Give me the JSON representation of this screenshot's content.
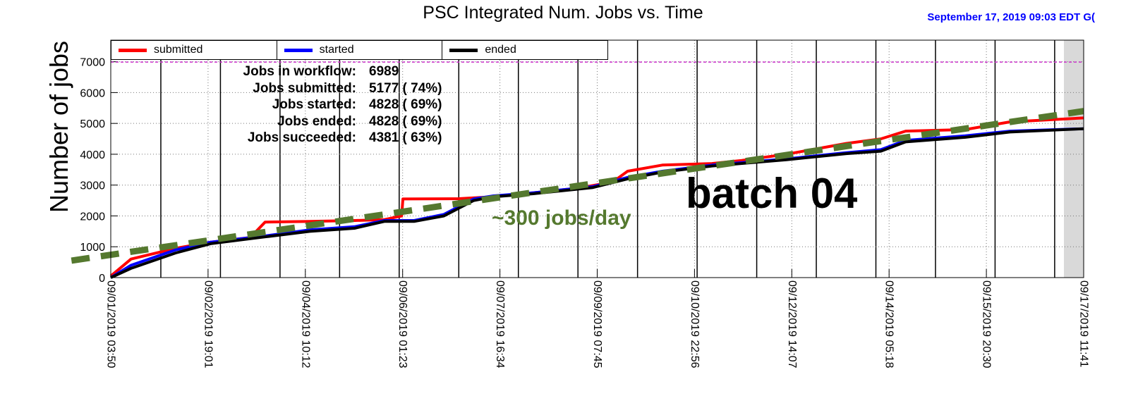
{
  "title": "PSC Integrated Num. Jobs vs. Time",
  "timestamp": "September 17, 2019  09:03 EDT G(",
  "colors": {
    "submitted": "#ff0000",
    "started": "#0000ff",
    "ended": "#000000",
    "trend": "#55792f",
    "workflow_line": "#cc33cc"
  },
  "legend": [
    {
      "label": "submitted",
      "color": "#ff0000"
    },
    {
      "label": "started",
      "color": "#0000ff"
    },
    {
      "label": "ended",
      "color": "#000000"
    }
  ],
  "stats": [
    {
      "label": "Jobs in workflow:",
      "value": "6989"
    },
    {
      "label": "Jobs submitted:",
      "value": "5177 ( 74%)"
    },
    {
      "label": "Jobs started:",
      "value": "4828 ( 69%)"
    },
    {
      "label": "Jobs ended:",
      "value": "4828 ( 69%)"
    },
    {
      "label": "Jobs succeeded:",
      "value": "4381 ( 63%)"
    }
  ],
  "annotations": {
    "batch": "batch 04",
    "rate": "~300 jobs/day"
  },
  "chart_data": {
    "type": "line",
    "ylabel": "Number of jobs",
    "xlabel": "",
    "ylim": [
      0,
      7700
    ],
    "xlim": [
      "2019-09-01 03:50",
      "2019-09-17 11:41"
    ],
    "yticks": [
      0,
      1000,
      2000,
      3000,
      4000,
      5000,
      6000,
      7000
    ],
    "xtick_labels": [
      "09/01/2019 03:50",
      "09/02/2019 19:01",
      "09/04/2019 10:12",
      "09/06/2019 01:23",
      "09/07/2019 16:34",
      "09/09/2019 07:45",
      "09/10/2019 22:56",
      "09/12/2019 14:07",
      "09/14/2019 05:18",
      "09/15/2019 20:30",
      "09/17/2019 11:41"
    ],
    "grid": true,
    "legend_position": "top-left",
    "reference_line": {
      "label": "Jobs in workflow",
      "value": 6989
    },
    "series": [
      {
        "name": "submitted",
        "x": [
          "2019-09-01 03:50",
          "2019-09-01 12:00",
          "2019-09-02 06:00",
          "2019-09-02 20:00",
          "2019-09-03 12:00",
          "2019-09-03 18:00",
          "2019-09-04 12:00",
          "2019-09-05 06:00",
          "2019-09-05 18:00",
          "2019-09-06 01:00",
          "2019-09-06 01:30",
          "2019-09-07 00:00",
          "2019-09-07 14:00",
          "2019-09-08 06:00",
          "2019-09-09 00:00",
          "2019-09-09 14:00",
          "2019-09-09 20:00",
          "2019-09-10 10:00",
          "2019-09-11 06:00",
          "2019-09-11 18:00",
          "2019-09-12 12:00",
          "2019-09-13 12:00",
          "2019-09-14 02:00",
          "2019-09-14 12:00",
          "2019-09-15 12:00",
          "2019-09-16 06:00",
          "2019-09-17 11:41"
        ],
        "values": [
          50,
          600,
          950,
          1150,
          1300,
          1800,
          1820,
          1850,
          1880,
          2000,
          2550,
          2560,
          2620,
          2750,
          2900,
          3100,
          3450,
          3650,
          3700,
          3800,
          4000,
          4350,
          4500,
          4750,
          4800,
          5050,
          5177
        ]
      },
      {
        "name": "started",
        "x": [
          "2019-09-01 03:50",
          "2019-09-01 12:00",
          "2019-09-02 06:00",
          "2019-09-02 20:00",
          "2019-09-03 18:00",
          "2019-09-04 12:00",
          "2019-09-05 06:00",
          "2019-09-05 18:00",
          "2019-09-06 06:00",
          "2019-09-06 18:00",
          "2019-09-07 06:00",
          "2019-09-07 14:00",
          "2019-09-08 06:00",
          "2019-09-09 06:00",
          "2019-09-09 20:00",
          "2019-09-10 10:00",
          "2019-09-11 06:00",
          "2019-09-12 12:00",
          "2019-09-13 12:00",
          "2019-09-14 02:00",
          "2019-09-14 12:00",
          "2019-09-15 12:00",
          "2019-09-16 06:00",
          "2019-09-17 11:41"
        ],
        "values": [
          0,
          400,
          900,
          1150,
          1350,
          1550,
          1650,
          1850,
          1850,
          2050,
          2550,
          2650,
          2750,
          2950,
          3250,
          3450,
          3650,
          3850,
          4050,
          4150,
          4450,
          4600,
          4750,
          4828
        ]
      },
      {
        "name": "ended",
        "x": [
          "2019-09-01 03:50",
          "2019-09-01 12:00",
          "2019-09-02 06:00",
          "2019-09-02 20:00",
          "2019-09-03 18:00",
          "2019-09-04 12:00",
          "2019-09-05 06:00",
          "2019-09-05 18:00",
          "2019-09-06 06:00",
          "2019-09-06 18:00",
          "2019-09-07 06:00",
          "2019-09-07 14:00",
          "2019-09-08 06:00",
          "2019-09-09 06:00",
          "2019-09-09 20:00",
          "2019-09-10 10:00",
          "2019-09-11 06:00",
          "2019-09-12 12:00",
          "2019-09-13 12:00",
          "2019-09-14 02:00",
          "2019-09-14 12:00",
          "2019-09-15 12:00",
          "2019-09-16 06:00",
          "2019-09-17 11:41"
        ],
        "values": [
          0,
          300,
          800,
          1100,
          1320,
          1500,
          1600,
          1820,
          1820,
          2000,
          2500,
          2620,
          2720,
          2920,
          3200,
          3420,
          3620,
          3820,
          4020,
          4100,
          4400,
          4550,
          4720,
          4828
        ]
      },
      {
        "name": "",
        "x": [
          "2019-08-31 12:00",
          "2019-09-17 11:41"
        ],
        "values": [
          550,
          5400
        ]
      }
    ]
  }
}
